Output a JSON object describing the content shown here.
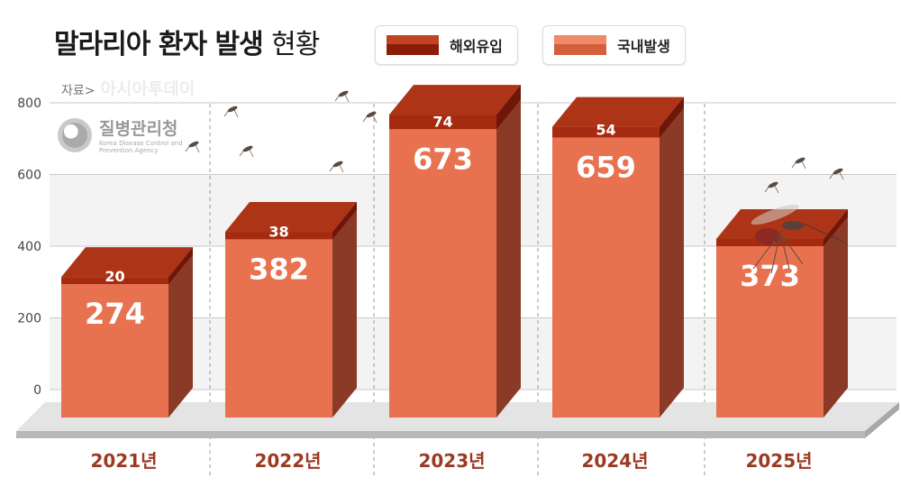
{
  "title_bold": "말라리아 환자 발생",
  "title_light": "현황",
  "source_label": "자료>",
  "source_brand": "아시아투데이",
  "logo_text": "질병관리청",
  "logo_sub1": "Korea Disease Control and",
  "logo_sub2": "Prevention Agency",
  "colors": {
    "overseas": "#a52a10",
    "domestic": "#e8724f",
    "domestic_side": "#8c3a28",
    "overseas_side": "#6e1608",
    "top": "#ad3416"
  },
  "chart_data": {
    "type": "bar",
    "stacked": true,
    "categories": [
      "2021년",
      "2022년",
      "2023년",
      "2024년",
      "2025년"
    ],
    "series": [
      {
        "name": "국내발생",
        "values": [
          274,
          382,
          673,
          659,
          373
        ]
      },
      {
        "name": "해외유입",
        "values": [
          20,
          38,
          74,
          54,
          27
        ]
      }
    ],
    "title": "말라리아 환자 발생 현황",
    "ylim": [
      0,
      800
    ],
    "yticks": [
      "0",
      "200",
      "400",
      "600",
      "800"
    ],
    "grid": true,
    "legend_position": "top-right"
  }
}
